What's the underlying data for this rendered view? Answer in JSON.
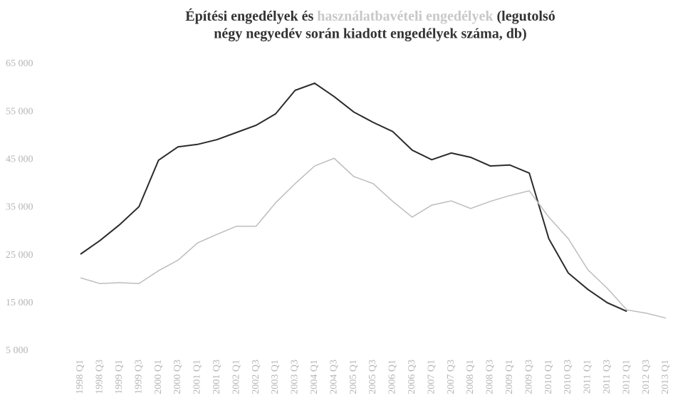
{
  "chart_data": {
    "type": "line",
    "title_connector": "és",
    "title_rest": [
      "(legutolsó",
      "négy negyedév során kiadott engedélyek száma, db)"
    ],
    "categories": [
      "1998 Q1",
      "1998 Q3",
      "1999 Q1",
      "1999 Q3",
      "2000 Q1",
      "2000 Q3",
      "2001 Q1",
      "2001 Q3",
      "2002 Q1",
      "2002 Q3",
      "2003 Q1",
      "2003 Q3",
      "2004 Q1",
      "2004 Q3",
      "2005 Q1",
      "2005 Q3",
      "2006 Q1",
      "2006 Q3",
      "2007 Q1",
      "2007 Q3",
      "2008 Q1",
      "2008 Q3",
      "2009 Q1",
      "2009 Q3",
      "2010 Q1",
      "2010 Q3",
      "2011 Q1",
      "2011 Q3",
      "2012 Q1",
      "2012 Q3",
      "2013 Q1"
    ],
    "series": [
      {
        "name": "Építési engedélyek",
        "color": "#2b2b2b",
        "values": [
          25250,
          28100,
          31400,
          35200,
          44900,
          47700,
          48200,
          49200,
          50700,
          52200,
          54600,
          59500,
          61000,
          58200,
          55000,
          52800,
          50900,
          47000,
          45000,
          46400,
          45500,
          43700,
          43900,
          42200,
          28500,
          21300,
          17900,
          15100,
          13300,
          null,
          null
        ]
      },
      {
        "name": "használatbavételi engedélyek",
        "color": "#bdbdbd",
        "values": [
          20300,
          19100,
          19300,
          19100,
          21800,
          24000,
          27600,
          29400,
          31100,
          31100,
          36000,
          40000,
          43700,
          45300,
          41500,
          40000,
          36300,
          33000,
          35500,
          36400,
          34800,
          36300,
          37500,
          38500,
          33000,
          28500,
          22000,
          18100,
          13600,
          12900,
          11900
        ]
      }
    ],
    "ylim": [
      5000,
      65000
    ],
    "yticks": [
      {
        "value": 5000,
        "label": "5 000"
      },
      {
        "value": 15000,
        "label": "15 000"
      },
      {
        "value": 25000,
        "label": "25 000"
      },
      {
        "value": 35000,
        "label": "35 000"
      },
      {
        "value": 45000,
        "label": "45 000"
      },
      {
        "value": 55000,
        "label": "55 000"
      },
      {
        "value": 65000,
        "label": "65 000"
      }
    ],
    "grid": false
  }
}
